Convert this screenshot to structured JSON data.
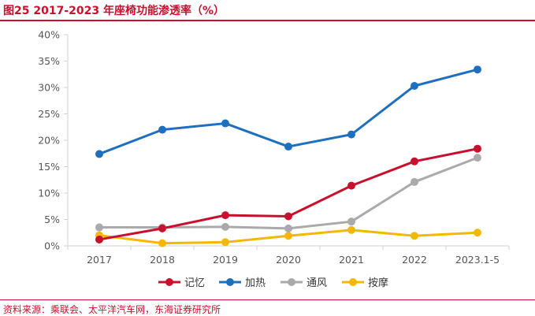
{
  "header": {
    "title": "图25  2017-2023 年座椅功能渗透率（%）"
  },
  "footer": {
    "source": "资料来源：乘联会、太平洋汽车网，东海证券研究所"
  },
  "chart_data": {
    "type": "line",
    "title": "图25  2017-2023 年座椅功能渗透率（%）",
    "xlabel": "",
    "ylabel": "",
    "categories": [
      "2017",
      "2018",
      "2019",
      "2020",
      "2021",
      "2022",
      "2023.1-5"
    ],
    "ylim": [
      0,
      40
    ],
    "yticks": [
      "0%",
      "5%",
      "10%",
      "15%",
      "20%",
      "25%",
      "30%",
      "35%",
      "40%"
    ],
    "grid": false,
    "legend_position": "bottom",
    "series": [
      {
        "name": "记忆",
        "color": "#c8102e",
        "values": [
          1.2,
          3.3,
          5.8,
          5.6,
          11.4,
          16.0,
          18.4
        ]
      },
      {
        "name": "加热",
        "color": "#1f6fbf",
        "values": [
          17.4,
          22.0,
          23.2,
          18.8,
          21.1,
          30.3,
          33.4
        ]
      },
      {
        "name": "通风",
        "color": "#aaaaaa",
        "values": [
          3.5,
          3.5,
          3.6,
          3.3,
          4.6,
          12.1,
          16.7
        ]
      },
      {
        "name": "按摩",
        "color": "#f5b800",
        "values": [
          2.0,
          0.5,
          0.7,
          1.9,
          3.0,
          1.9,
          2.5
        ]
      }
    ]
  }
}
